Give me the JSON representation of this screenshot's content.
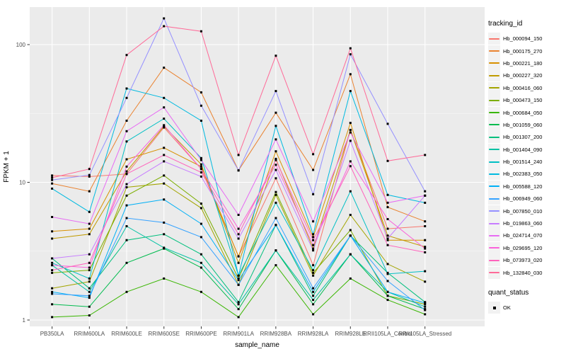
{
  "chart_data": {
    "type": "line",
    "title": "",
    "xlabel": "sample_name",
    "ylabel": "FPKM + 1",
    "y_scale": "log10",
    "y_ticks": [
      1,
      10,
      100
    ],
    "y_minor": [
      3.1623,
      31.623
    ],
    "ylim": [
      0.9,
      187
    ],
    "grid": true,
    "marker": {
      "shape": "square",
      "color": "#000000",
      "size": 3
    },
    "legend": {
      "title": "tracking_id",
      "position": "right"
    },
    "quant_status": {
      "title": "quant_status",
      "items": [
        {
          "label": "OK",
          "marker": "black-square"
        }
      ]
    },
    "categories": [
      "PB350LA",
      "RRIM600LA",
      "RRIM600LE",
      "RRIM600SE",
      "RRIM600PE",
      "RRIM901LA",
      "RRIM928BA",
      "RRIM928LA",
      "RRIM928LE",
      "RRII105LA_Control",
      "RRII105LA_Stressed"
    ],
    "series": [
      {
        "name": "Hb_000094_150",
        "color": "#F8766D",
        "values": [
          11.2,
          11.0,
          11.5,
          25.0,
          12.5,
          2.9,
          10.7,
          2.5,
          24.0,
          4.6,
          4.8
        ]
      },
      {
        "name": "Hb_000175_270",
        "color": "#EA8331",
        "values": [
          9.8,
          8.6,
          28.0,
          68.0,
          45.0,
          12.2,
          32.0,
          12.3,
          61.0,
          6.6,
          5.2
        ]
      },
      {
        "name": "Hb_000221_180",
        "color": "#D89000",
        "values": [
          4.4,
          4.6,
          14.7,
          17.8,
          13.0,
          2.9,
          16.8,
          4.0,
          27.0,
          3.8,
          3.8
        ]
      },
      {
        "name": "Hb_000227_320",
        "color": "#C09B00",
        "values": [
          3.9,
          4.2,
          12.0,
          25.5,
          13.5,
          2.6,
          14.8,
          3.3,
          24.0,
          4.1,
          3.4
        ]
      },
      {
        "name": "Hb_000416_060",
        "color": "#A3A500",
        "values": [
          1.7,
          1.9,
          9.2,
          9.8,
          6.5,
          1.8,
          8.1,
          2.1,
          5.8,
          2.55,
          1.9
        ]
      },
      {
        "name": "Hb_000473_150",
        "color": "#7CAE00",
        "values": [
          2.2,
          2.3,
          8.0,
          11.2,
          7.0,
          2.0,
          8.5,
          2.2,
          4.5,
          1.5,
          1.3
        ]
      },
      {
        "name": "Hb_000684_050",
        "color": "#39B600",
        "values": [
          1.05,
          1.08,
          1.6,
          2.0,
          1.6,
          1.05,
          2.5,
          1.1,
          2.0,
          1.4,
          1.1
        ]
      },
      {
        "name": "Hb_001059_060",
        "color": "#00BB4E",
        "values": [
          1.3,
          1.25,
          2.6,
          3.3,
          2.4,
          1.2,
          3.2,
          1.3,
          3.0,
          1.5,
          1.2
        ]
      },
      {
        "name": "Hb_001307_200",
        "color": "#00BF7D",
        "values": [
          2.8,
          1.7,
          3.8,
          4.2,
          3.0,
          1.35,
          4.9,
          1.5,
          4.1,
          2.2,
          1.35
        ]
      },
      {
        "name": "Hb_001404_090",
        "color": "#00C1A3",
        "values": [
          2.5,
          1.6,
          4.8,
          3.35,
          2.6,
          1.3,
          3.2,
          1.4,
          3.0,
          1.6,
          1.25
        ]
      },
      {
        "name": "Hb_001514_240",
        "color": "#00BFC4",
        "values": [
          2.6,
          2.0,
          19.8,
          29.0,
          15.0,
          2.1,
          7.1,
          2.3,
          8.6,
          2.16,
          2.26
        ]
      },
      {
        "name": "Hb_002383_050",
        "color": "#00BAE0",
        "values": [
          9.0,
          6.1,
          48.0,
          41.0,
          28.0,
          2.1,
          25.7,
          4.2,
          46.0,
          8.1,
          7.1
        ]
      },
      {
        "name": "Hb_005588_120",
        "color": "#00B0F6",
        "values": [
          1.6,
          1.45,
          6.8,
          7.5,
          5.0,
          1.95,
          4.9,
          1.6,
          4.1,
          1.6,
          1.33
        ]
      },
      {
        "name": "Hb_006949_060",
        "color": "#35A2FF",
        "values": [
          1.55,
          1.5,
          5.5,
          5.1,
          4.0,
          1.8,
          5.5,
          1.7,
          4.1,
          1.92,
          1.18
        ]
      },
      {
        "name": "Hb_007850_010",
        "color": "#9590FF",
        "values": [
          10.4,
          11.3,
          41.0,
          155.0,
          36.0,
          12.2,
          46.0,
          8.2,
          85.0,
          26.6,
          8.6
        ]
      },
      {
        "name": "Hb_019863_060",
        "color": "#C77CFF",
        "values": [
          2.8,
          3.0,
          9.7,
          14.2,
          11.0,
          3.9,
          12.3,
          3.2,
          20.0,
          3.9,
          8.0
        ]
      },
      {
        "name": "Hb_024714_070",
        "color": "#E76BF3",
        "values": [
          5.6,
          5.0,
          23.5,
          35.0,
          14.5,
          5.8,
          20.5,
          5.2,
          23.0,
          7.1,
          8.0
        ]
      },
      {
        "name": "Hb_029695_120",
        "color": "#FA62DB",
        "values": [
          2.5,
          2.4,
          13.0,
          26.0,
          12.5,
          4.6,
          13.4,
          3.5,
          14.2,
          5.4,
          3.3
        ]
      },
      {
        "name": "Hb_073973_020",
        "color": "#FF62BC",
        "values": [
          2.3,
          2.6,
          11.5,
          15.8,
          11.8,
          4.2,
          14.5,
          3.8,
          13.1,
          3.5,
          3.1
        ]
      },
      {
        "name": "Hb_132840_030",
        "color": "#FF6A98",
        "values": [
          10.8,
          12.5,
          84.0,
          136.0,
          125.0,
          15.8,
          83.0,
          16.0,
          94.0,
          14.3,
          15.8
        ]
      }
    ]
  },
  "theme": {
    "panel_bg": "#EBEBEB",
    "grid_major": "#FFFFFF",
    "grid_minor": "#F5F5F5",
    "tick_color": "#333333",
    "tick_label_color": "#4D4D4D",
    "axis_title_color": "#000000",
    "legend_key_bg": "#F2F2F2"
  }
}
